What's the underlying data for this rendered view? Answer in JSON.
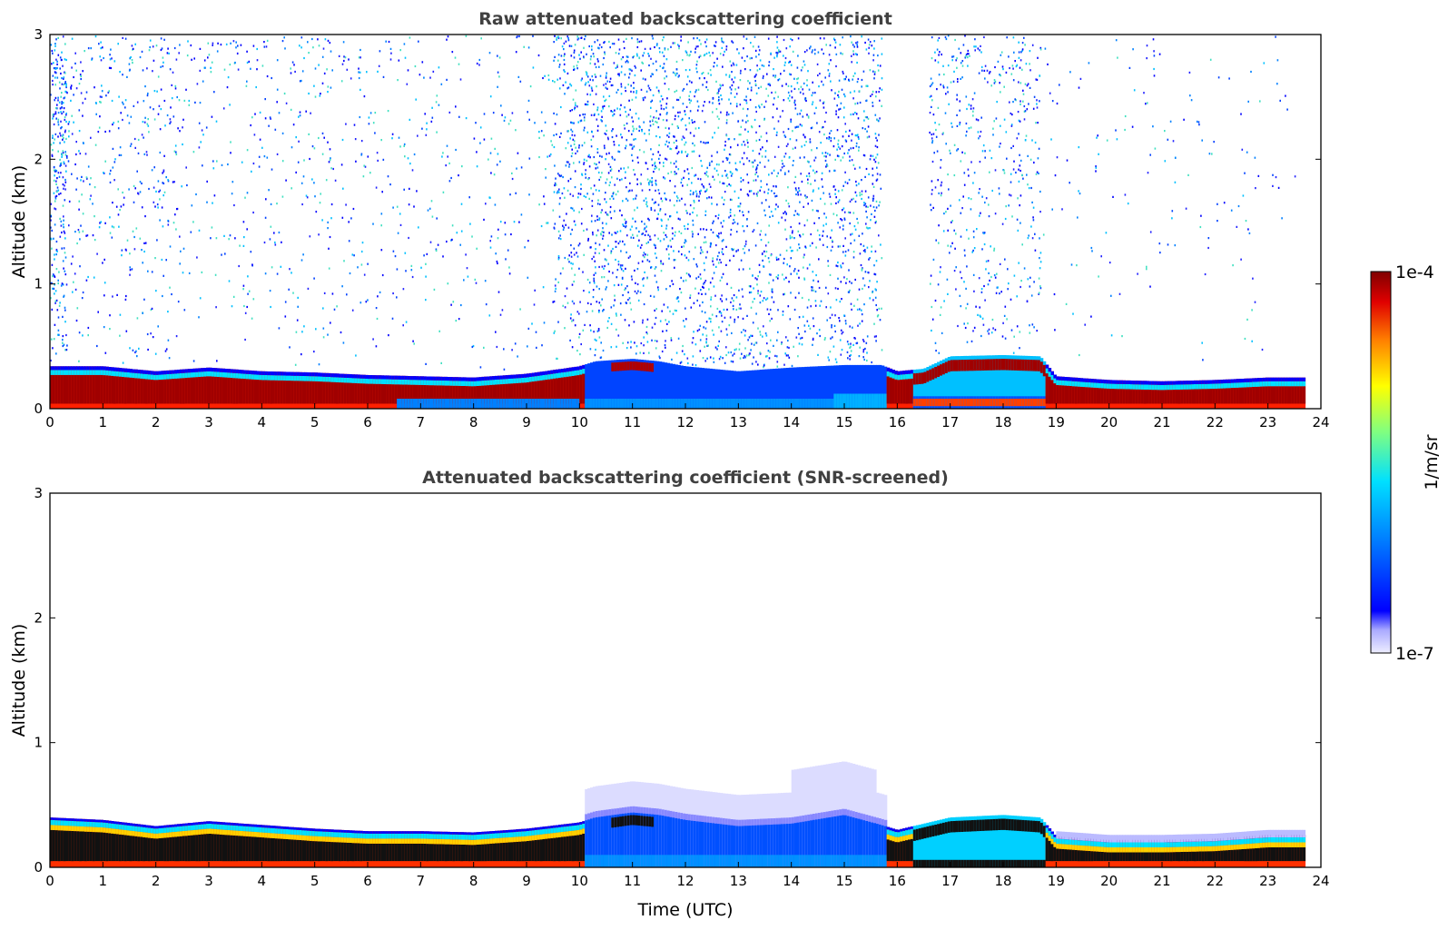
{
  "chart_data": [
    {
      "type": "heatmap",
      "title": "Raw attenuated backscattering coefficient",
      "xlabel": "",
      "ylabel": "Altitude (km)",
      "xlim": [
        0,
        24
      ],
      "ylim": [
        0,
        3
      ],
      "xticks": [
        "0",
        "1",
        "2",
        "3",
        "4",
        "5",
        "6",
        "7",
        "8",
        "9",
        "10",
        "11",
        "12",
        "13",
        "14",
        "15",
        "16",
        "17",
        "18",
        "19",
        "20",
        "21",
        "22",
        "23",
        "24"
      ],
      "yticks": [
        "0",
        "1",
        "2",
        "3"
      ],
      "boundary_layer_top_km": [
        [
          0,
          0.34
        ],
        [
          1,
          0.34
        ],
        [
          2,
          0.3
        ],
        [
          3,
          0.33
        ],
        [
          4,
          0.3
        ],
        [
          5,
          0.29
        ],
        [
          6,
          0.27
        ],
        [
          7,
          0.26
        ],
        [
          8,
          0.25
        ],
        [
          9,
          0.28
        ],
        [
          10,
          0.34
        ],
        [
          10.3,
          0.38
        ],
        [
          11,
          0.4
        ],
        [
          11.5,
          0.38
        ],
        [
          12,
          0.34
        ],
        [
          13,
          0.3
        ],
        [
          14,
          0.33
        ],
        [
          15,
          0.35
        ],
        [
          15.7,
          0.35
        ],
        [
          16,
          0.3
        ],
        [
          16.5,
          0.32
        ],
        [
          17,
          0.42
        ],
        [
          18,
          0.43
        ],
        [
          18.7,
          0.42
        ],
        [
          19,
          0.26
        ],
        [
          20,
          0.23
        ],
        [
          21,
          0.22
        ],
        [
          22,
          0.23
        ],
        [
          23,
          0.25
        ],
        [
          23.7,
          0.25
        ]
      ],
      "noise_region": {
        "x_start": 10.2,
        "x_end": 15.7,
        "top_km": 3
      }
    },
    {
      "type": "heatmap",
      "title": "Attenuated backscattering coefficient (SNR-screened)",
      "xlabel": "Time (UTC)",
      "ylabel": "Altitude (km)",
      "xlim": [
        0,
        24
      ],
      "ylim": [
        0,
        3
      ],
      "xticks": [
        "0",
        "1",
        "2",
        "3",
        "4",
        "5",
        "6",
        "7",
        "8",
        "9",
        "10",
        "11",
        "12",
        "13",
        "14",
        "15",
        "16",
        "17",
        "18",
        "19",
        "20",
        "21",
        "22",
        "23",
        "24"
      ],
      "yticks": [
        "0",
        "1",
        "2",
        "3"
      ],
      "boundary_layer_top_km": [
        [
          0,
          0.4
        ],
        [
          1,
          0.38
        ],
        [
          2,
          0.33
        ],
        [
          3,
          0.37
        ],
        [
          4,
          0.34
        ],
        [
          5,
          0.31
        ],
        [
          6,
          0.29
        ],
        [
          7,
          0.29
        ],
        [
          8,
          0.28
        ],
        [
          9,
          0.31
        ],
        [
          10,
          0.36
        ],
        [
          10.3,
          0.4
        ],
        [
          11,
          0.44
        ],
        [
          11.5,
          0.42
        ],
        [
          12,
          0.38
        ],
        [
          13,
          0.33
        ],
        [
          14,
          0.35
        ],
        [
          15,
          0.42
        ],
        [
          15.7,
          0.34
        ],
        [
          16,
          0.3
        ],
        [
          16.5,
          0.35
        ],
        [
          17,
          0.4
        ],
        [
          18,
          0.42
        ],
        [
          18.7,
          0.4
        ],
        [
          19,
          0.25
        ],
        [
          20,
          0.22
        ],
        [
          21,
          0.22
        ],
        [
          22,
          0.23
        ],
        [
          23,
          0.26
        ],
        [
          23.7,
          0.26
        ]
      ]
    }
  ],
  "colorbar": {
    "max_label": "1e-4",
    "min_label": "1e-7",
    "unit_label": "1/m/sr",
    "colors": [
      "#eeeeff",
      "#aaaaff",
      "#4444ff",
      "#0000ff",
      "#0050ff",
      "#00a0ff",
      "#00e0ff",
      "#40ffc0",
      "#80ff80",
      "#c0ff40",
      "#ffff00",
      "#ffc000",
      "#ff8000",
      "#ff4000",
      "#e00000",
      "#8b0000"
    ]
  }
}
